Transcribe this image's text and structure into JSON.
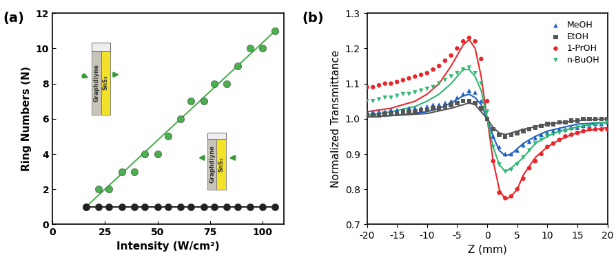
{
  "chart_data": [
    {
      "type": "scatter",
      "title": "(a)",
      "x_label": "Intensity (W/cm²)",
      "y_label": "Ring Numbers (N)",
      "xlim": [
        0,
        110
      ],
      "xticks": [
        0,
        25,
        50,
        75,
        100
      ],
      "ylim": [
        0,
        12
      ],
      "yticks": [
        0,
        2,
        4,
        6,
        8,
        10,
        12
      ],
      "insets": [
        {
          "labels": [
            "Graphdiyne",
            "SnS₂"
          ]
        },
        {
          "labels": [
            "Graphdiyne",
            "SnS₂"
          ]
        }
      ],
      "series": [
        {
          "type": "scatter",
          "color": "#4caf50",
          "marker": "circle",
          "x": [
            16,
            22,
            27,
            33,
            39,
            44,
            50,
            55,
            61,
            66,
            72,
            77,
            83,
            88,
            94,
            100,
            106
          ],
          "values": [
            1,
            2,
            2,
            3,
            3,
            4,
            4,
            5,
            6,
            7,
            7,
            8,
            8,
            9,
            10,
            10,
            11
          ]
        },
        {
          "type": "line",
          "color": "#4caf50",
          "line_style": "solid",
          "x": [
            16,
            106
          ],
          "values": [
            1,
            11
          ]
        },
        {
          "type": "scatter",
          "color": "#222222",
          "marker": "circle",
          "x": [
            16,
            22,
            27,
            33,
            39,
            44,
            50,
            55,
            61,
            66,
            72,
            77,
            83,
            88,
            94,
            100,
            106
          ],
          "values": [
            1,
            1,
            1,
            1,
            1,
            1,
            1,
            1,
            1,
            1,
            1,
            1,
            1,
            1,
            1,
            1,
            1
          ]
        },
        {
          "type": "line",
          "color": "#222222",
          "line_style": "solid",
          "x": [
            16,
            106
          ],
          "values": [
            1,
            1
          ]
        }
      ]
    },
    {
      "type": "scatter",
      "title": "(b)",
      "x_label": "Z (mm)",
      "y_label": "Normalized Transmittance",
      "xlim": [
        -20,
        20
      ],
      "xticks": [
        -20,
        -15,
        -10,
        -5,
        0,
        5,
        10,
        15,
        20
      ],
      "ylim": [
        0.7,
        1.3
      ],
      "yticks": [
        0.7,
        0.8,
        0.9,
        1.0,
        1.1,
        1.2,
        1.3
      ],
      "legend": "upper right",
      "series": [
        {
          "name": "MeOH",
          "type": "scatter",
          "color": "#1f5fbf",
          "marker": "triangle",
          "x": [
            -20,
            -19,
            -18,
            -17,
            -16,
            -15,
            -14,
            -13,
            -12,
            -11,
            -10,
            -9,
            -8,
            -7,
            -6,
            -5,
            -4,
            -3,
            -2,
            -1,
            0,
            1,
            2,
            3,
            4,
            5,
            6,
            7,
            8,
            9,
            10,
            11,
            12,
            13,
            14,
            15,
            16,
            17,
            18,
            19,
            20
          ],
          "values": [
            1.02,
            1.02,
            1.02,
            1.02,
            1.025,
            1.025,
            1.025,
            1.03,
            1.03,
            1.03,
            1.035,
            1.04,
            1.04,
            1.045,
            1.05,
            1.06,
            1.07,
            1.08,
            1.075,
            1.05,
            1.0,
            0.95,
            0.92,
            0.9,
            0.9,
            0.91,
            0.925,
            0.935,
            0.945,
            0.955,
            0.96,
            0.965,
            0.97,
            0.97,
            0.975,
            0.975,
            0.98,
            0.98,
            0.985,
            0.985,
            0.99
          ]
        },
        {
          "name": "EtOH",
          "type": "scatter",
          "color": "#555555",
          "marker": "square",
          "x": [
            -20,
            -19,
            -18,
            -17,
            -16,
            -15,
            -14,
            -13,
            -12,
            -11,
            -10,
            -9,
            -8,
            -7,
            -6,
            -5,
            -4,
            -3,
            -2,
            -1,
            0,
            1,
            2,
            3,
            4,
            5,
            6,
            7,
            8,
            9,
            10,
            11,
            12,
            13,
            14,
            15,
            16,
            17,
            18,
            19,
            20
          ],
          "values": [
            1.01,
            1.01,
            1.01,
            1.015,
            1.015,
            1.015,
            1.02,
            1.02,
            1.02,
            1.025,
            1.025,
            1.03,
            1.03,
            1.035,
            1.04,
            1.045,
            1.05,
            1.05,
            1.045,
            1.03,
            1.0,
            0.97,
            0.955,
            0.95,
            0.955,
            0.96,
            0.965,
            0.97,
            0.975,
            0.98,
            0.985,
            0.985,
            0.99,
            0.99,
            0.995,
            0.995,
            1.0,
            1.0,
            1.0,
            1.0,
            1.0
          ]
        },
        {
          "name": "1-PrOH",
          "type": "scatter",
          "color": "#e8262b",
          "marker": "circle",
          "x": [
            -20,
            -19,
            -18,
            -17,
            -16,
            -15,
            -14,
            -13,
            -12,
            -11,
            -10,
            -9,
            -8,
            -7,
            -6,
            -5,
            -4,
            -3,
            -2,
            -1,
            0,
            1,
            2,
            3,
            4,
            5,
            6,
            7,
            8,
            9,
            10,
            11,
            12,
            13,
            14,
            15,
            16,
            17,
            18,
            19,
            20
          ],
          "values": [
            1.09,
            1.09,
            1.095,
            1.1,
            1.1,
            1.105,
            1.11,
            1.115,
            1.12,
            1.125,
            1.13,
            1.14,
            1.15,
            1.165,
            1.18,
            1.2,
            1.22,
            1.23,
            1.22,
            1.17,
            1.05,
            0.88,
            0.79,
            0.775,
            0.78,
            0.8,
            0.83,
            0.86,
            0.88,
            0.9,
            0.92,
            0.93,
            0.94,
            0.95,
            0.955,
            0.96,
            0.965,
            0.97,
            0.97,
            0.97,
            0.97
          ]
        },
        {
          "name": "n-BuOH",
          "type": "scatter",
          "color": "#2eb872",
          "marker": "triangle_down",
          "x": [
            -20,
            -19,
            -18,
            -17,
            -16,
            -15,
            -14,
            -13,
            -12,
            -11,
            -10,
            -9,
            -8,
            -7,
            -6,
            -5,
            -4,
            -3,
            -2,
            -1,
            0,
            1,
            2,
            3,
            4,
            5,
            6,
            7,
            8,
            9,
            10,
            11,
            12,
            13,
            14,
            15,
            16,
            17,
            18,
            19,
            20
          ],
          "values": [
            1.05,
            1.05,
            1.055,
            1.06,
            1.06,
            1.065,
            1.07,
            1.07,
            1.075,
            1.08,
            1.085,
            1.09,
            1.1,
            1.11,
            1.12,
            1.13,
            1.14,
            1.145,
            1.13,
            1.1,
            1.02,
            0.92,
            0.87,
            0.85,
            0.855,
            0.87,
            0.89,
            0.91,
            0.93,
            0.94,
            0.95,
            0.955,
            0.96,
            0.965,
            0.97,
            0.975,
            0.98,
            0.98,
            0.985,
            0.985,
            0.99
          ]
        },
        {
          "type": "line",
          "color": "#1f5fbf",
          "line_style": "solid",
          "x": [
            -20,
            -15,
            -10,
            -8,
            -6,
            -4,
            -3,
            -2,
            -1,
            0,
            1,
            2,
            3,
            4,
            6,
            8,
            10,
            15,
            20
          ],
          "values": [
            1.005,
            1.01,
            1.02,
            1.03,
            1.045,
            1.065,
            1.07,
            1.06,
            1.04,
            1.0,
            0.95,
            0.91,
            0.895,
            0.9,
            0.93,
            0.95,
            0.965,
            0.985,
            0.99
          ]
        },
        {
          "type": "line",
          "color": "#555555",
          "line_style": "solid",
          "x": [
            -20,
            -15,
            -10,
            -6,
            -4,
            -3,
            -2,
            -1,
            0,
            1,
            2,
            3,
            4,
            6,
            10,
            15,
            20
          ],
          "values": [
            1.005,
            1.01,
            1.015,
            1.03,
            1.04,
            1.045,
            1.04,
            1.02,
            1.0,
            0.975,
            0.96,
            0.955,
            0.96,
            0.97,
            0.985,
            0.995,
            1.0
          ]
        },
        {
          "type": "line",
          "color": "#e8262b",
          "line_style": "solid",
          "x": [
            -20,
            -18,
            -16,
            -14,
            -12,
            -10,
            -8,
            -6,
            -5,
            -4,
            -3,
            -2,
            -1,
            0,
            1,
            2,
            3,
            4,
            5,
            6,
            8,
            10,
            12,
            14,
            16,
            18,
            20
          ],
          "values": [
            1.02,
            1.025,
            1.03,
            1.04,
            1.05,
            1.07,
            1.1,
            1.15,
            1.18,
            1.21,
            1.225,
            1.2,
            1.12,
            1.0,
            0.88,
            0.8,
            0.77,
            0.78,
            0.8,
            0.84,
            0.89,
            0.92,
            0.94,
            0.955,
            0.965,
            0.97,
            0.975
          ]
        },
        {
          "type": "line",
          "color": "#2eb872",
          "line_style": "solid",
          "x": [
            -20,
            -16,
            -12,
            -10,
            -8,
            -6,
            -4,
            -3,
            -2,
            -1,
            0,
            1,
            2,
            3,
            4,
            6,
            8,
            10,
            12,
            16,
            20
          ],
          "values": [
            1.01,
            1.02,
            1.035,
            1.05,
            1.07,
            1.1,
            1.14,
            1.14,
            1.12,
            1.08,
            1.0,
            0.92,
            0.87,
            0.85,
            0.86,
            0.89,
            0.93,
            0.95,
            0.965,
            0.98,
            0.99
          ]
        }
      ]
    }
  ]
}
